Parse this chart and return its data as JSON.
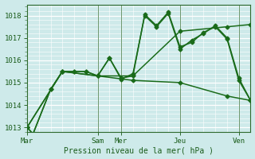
{
  "bg_color": "#ceeaea",
  "grid_color": "#ffffff",
  "minor_grid_color": "#ddf0f0",
  "line_color": "#1a6b1a",
  "x_ticks_labels": [
    "Mar",
    "Sam",
    "Mer",
    "Jeu",
    "Ven"
  ],
  "x_ticks_pos": [
    0,
    6,
    8,
    13,
    18
  ],
  "ylim": [
    1012.8,
    1018.5
  ],
  "yticks": [
    1013,
    1014,
    1015,
    1016,
    1017,
    1018
  ],
  "xlabel": "Pression niveau de la mer( hPa )",
  "xlim": [
    0,
    19
  ],
  "vlines_x": [
    6,
    8,
    13,
    18
  ],
  "series": [
    {
      "x": [
        0,
        0.5,
        2,
        3,
        4,
        5,
        6,
        7,
        8,
        9,
        10,
        11,
        12,
        13,
        14,
        15,
        16,
        17,
        18,
        19
      ],
      "y": [
        1013.0,
        1012.7,
        1014.7,
        1015.5,
        1015.5,
        1015.5,
        1015.3,
        1016.1,
        1015.2,
        1015.3,
        1018.05,
        1017.55,
        1018.15,
        1016.6,
        1016.8,
        1017.25,
        1017.5,
        1016.95,
        1015.1,
        1014.2
      ]
    },
    {
      "x": [
        0,
        0.5,
        2,
        3,
        4,
        5,
        6,
        7,
        8,
        9,
        10,
        11,
        12,
        13,
        14,
        15,
        16,
        17,
        18,
        19
      ],
      "y": [
        1013.0,
        1012.7,
        1014.7,
        1015.5,
        1015.5,
        1015.5,
        1015.3,
        1016.1,
        1015.15,
        1015.4,
        1018.0,
        1017.5,
        1018.1,
        1016.5,
        1016.9,
        1017.2,
        1017.55,
        1017.0,
        1015.2,
        1014.2
      ]
    },
    {
      "x": [
        0,
        3,
        6,
        9,
        13,
        17,
        19
      ],
      "y": [
        1013.0,
        1015.5,
        1015.3,
        1015.3,
        1017.3,
        1017.5,
        1017.6
      ]
    },
    {
      "x": [
        0,
        3,
        6,
        9,
        13,
        17,
        19
      ],
      "y": [
        1013.0,
        1015.5,
        1015.3,
        1015.1,
        1015.0,
        1014.4,
        1014.2
      ]
    }
  ],
  "marker": "D",
  "markersize": 2.5,
  "linewidth": 1.1
}
